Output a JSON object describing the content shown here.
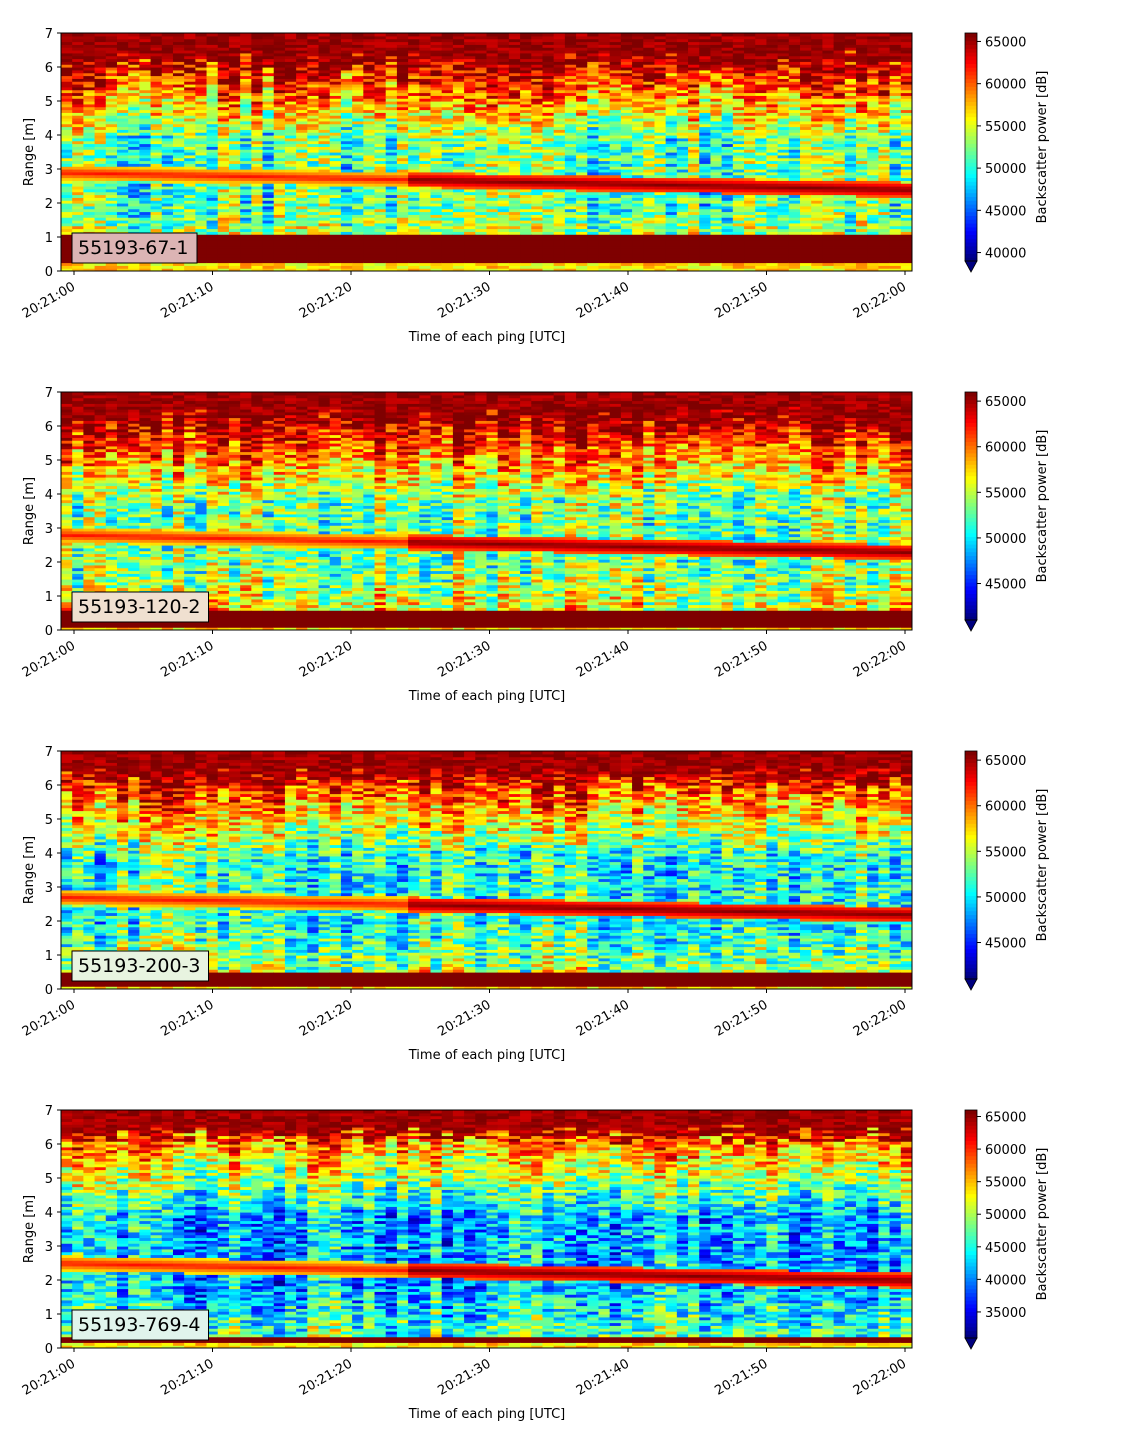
{
  "colormap": {
    "name": "jet",
    "stops": [
      "#00007f",
      "#0000ff",
      "#007fff",
      "#00ffff",
      "#7fff7f",
      "#ffff00",
      "#ff7f00",
      "#ff0000",
      "#7f0000"
    ]
  },
  "label_box_colors": [
    "#dcb4b4",
    "#f0e0d0",
    "#e8f4e0",
    "#e0f4ec"
  ],
  "chart_data": [
    {
      "type": "heatmap",
      "label": "55193-67-1",
      "xlabel": "Time of each ping [UTC]",
      "ylabel": "Range [m]",
      "colorbar_label": "Backscatter power [dB]",
      "x_ticks": [
        "20:21:00",
        "20:21:10",
        "20:21:20",
        "20:21:30",
        "20:21:40",
        "20:21:50",
        "20:22:00"
      ],
      "y_ticks": [
        "0",
        "1",
        "2",
        "3",
        "4",
        "5",
        "6",
        "7"
      ],
      "ylim": [
        0,
        7
      ],
      "clim": [
        39000,
        66000
      ],
      "cbar_ticks": [
        "40000",
        "45000",
        "50000",
        "55000",
        "60000",
        "65000"
      ],
      "cbar_tick_values": [
        40000,
        45000,
        50000,
        55000,
        60000,
        65000
      ],
      "features": {
        "bottom_band": [
          0.25,
          1.1
        ],
        "surface_band_from": 6.2,
        "mid_band": 2.6,
        "low": 0.32
      }
    },
    {
      "type": "heatmap",
      "label": "55193-120-2",
      "xlabel": "Time of each ping [UTC]",
      "ylabel": "Range [m]",
      "colorbar_label": "Backscatter power [dB]",
      "x_ticks": [
        "20:21:00",
        "20:21:10",
        "20:21:20",
        "20:21:30",
        "20:21:40",
        "20:21:50",
        "20:22:00"
      ],
      "y_ticks": [
        "0",
        "1",
        "2",
        "3",
        "4",
        "5",
        "6",
        "7"
      ],
      "ylim": [
        0,
        7
      ],
      "clim": [
        41000,
        66000
      ],
      "cbar_ticks": [
        "45000",
        "50000",
        "55000",
        "60000",
        "65000"
      ],
      "cbar_tick_values": [
        45000,
        50000,
        55000,
        60000,
        65000
      ],
      "features": {
        "bottom_band": [
          0.1,
          0.55
        ],
        "surface_band_from": 6.3,
        "mid_band": 2.5,
        "low": 0.38
      }
    },
    {
      "type": "heatmap",
      "label": "55193-200-3",
      "xlabel": "Time of each ping [UTC]",
      "ylabel": "Range [m]",
      "colorbar_label": "Backscatter power [dB]",
      "x_ticks": [
        "20:21:00",
        "20:21:10",
        "20:21:20",
        "20:21:30",
        "20:21:40",
        "20:21:50",
        "20:22:00"
      ],
      "y_ticks": [
        "0",
        "1",
        "2",
        "3",
        "4",
        "5",
        "6",
        "7"
      ],
      "ylim": [
        0,
        7
      ],
      "clim": [
        41000,
        66000
      ],
      "cbar_ticks": [
        "45000",
        "50000",
        "55000",
        "60000",
        "65000"
      ],
      "cbar_tick_values": [
        45000,
        50000,
        55000,
        60000,
        65000
      ],
      "features": {
        "bottom_band": [
          0.1,
          0.5
        ],
        "surface_band_from": 6.3,
        "mid_band": 2.4,
        "low": 0.3
      }
    },
    {
      "type": "heatmap",
      "label": "55193-769-4",
      "xlabel": "Time of each ping [UTC]",
      "ylabel": "Range [m]",
      "colorbar_label": "Backscatter power [dB]",
      "x_ticks": [
        "20:21:00",
        "20:21:10",
        "20:21:20",
        "20:21:30",
        "20:21:40",
        "20:21:50",
        "20:22:00"
      ],
      "y_ticks": [
        "0",
        "1",
        "2",
        "3",
        "4",
        "5",
        "6",
        "7"
      ],
      "ylim": [
        0,
        7
      ],
      "clim": [
        31000,
        66000
      ],
      "cbar_ticks": [
        "35000",
        "40000",
        "45000",
        "50000",
        "55000",
        "60000",
        "65000"
      ],
      "cbar_tick_values": [
        35000,
        40000,
        45000,
        50000,
        55000,
        60000,
        65000
      ],
      "features": {
        "bottom_band": [
          0.15,
          0.3
        ],
        "surface_band_from": 6.3,
        "mid_band": 2.2,
        "low": 0.18
      }
    }
  ]
}
